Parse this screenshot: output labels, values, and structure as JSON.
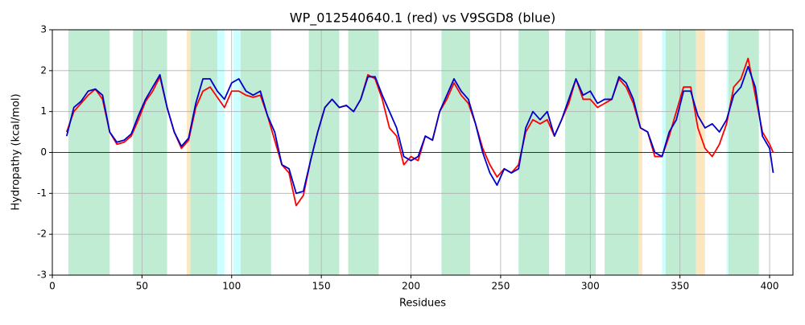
{
  "chart_data": {
    "type": "line",
    "title": "WP_012540640.1 (red) vs V9SGD8 (blue)",
    "xlabel": "Residues",
    "ylabel": "Hydropathy (kcal/mol)",
    "xlim": [
      0,
      413
    ],
    "ylim": [
      -3,
      3
    ],
    "xticks": [
      0,
      50,
      100,
      150,
      200,
      250,
      300,
      350,
      400
    ],
    "yticks": [
      -3,
      -2,
      -1,
      0,
      1,
      2,
      3
    ],
    "grid": true,
    "hline": 0,
    "spans": [
      {
        "start": 9,
        "end": 32,
        "color": "#c0ecd4"
      },
      {
        "start": 45,
        "end": 64,
        "color": "#c0ecd4"
      },
      {
        "start": 75,
        "end": 77,
        "color": "#fde7c0"
      },
      {
        "start": 77,
        "end": 92,
        "color": "#c0ecd4"
      },
      {
        "start": 92,
        "end": 96,
        "color": "#ccffff"
      },
      {
        "start": 101,
        "end": 105,
        "color": "#ccffff"
      },
      {
        "start": 105,
        "end": 122,
        "color": "#c0ecd4"
      },
      {
        "start": 143,
        "end": 160,
        "color": "#c0ecd4"
      },
      {
        "start": 165,
        "end": 182,
        "color": "#c0ecd4"
      },
      {
        "start": 217,
        "end": 233,
        "color": "#c0ecd4"
      },
      {
        "start": 260,
        "end": 277,
        "color": "#c0ecd4"
      },
      {
        "start": 286,
        "end": 303,
        "color": "#c0ecd4"
      },
      {
        "start": 308,
        "end": 327,
        "color": "#c0ecd4"
      },
      {
        "start": 327,
        "end": 329,
        "color": "#fde7c0"
      },
      {
        "start": 340,
        "end": 342,
        "color": "#ccffff"
      },
      {
        "start": 342,
        "end": 359,
        "color": "#c0ecd4"
      },
      {
        "start": 359,
        "end": 364,
        "color": "#fde7c0"
      },
      {
        "start": 376,
        "end": 377,
        "color": "#ccffff"
      },
      {
        "start": 377,
        "end": 394,
        "color": "#c0ecd4"
      }
    ],
    "x": [
      8,
      12,
      16,
      20,
      24,
      28,
      32,
      36,
      40,
      44,
      48,
      52,
      56,
      60,
      64,
      68,
      72,
      76,
      80,
      84,
      88,
      92,
      96,
      100,
      104,
      108,
      112,
      116,
      120,
      124,
      128,
      132,
      136,
      140,
      144,
      148,
      152,
      156,
      160,
      164,
      168,
      172,
      176,
      180,
      184,
      188,
      192,
      196,
      200,
      204,
      208,
      212,
      216,
      220,
      224,
      228,
      232,
      236,
      240,
      244,
      248,
      252,
      256,
      260,
      264,
      268,
      272,
      276,
      280,
      284,
      288,
      292,
      296,
      300,
      304,
      308,
      312,
      316,
      320,
      324,
      328,
      332,
      336,
      340,
      344,
      348,
      352,
      356,
      360,
      364,
      368,
      372,
      376,
      380,
      384,
      388,
      392,
      396,
      400,
      402
    ],
    "series": [
      {
        "name": "WP_012540640.1",
        "color": "#ff0000",
        "values": [
          0.5,
          1.0,
          1.2,
          1.4,
          1.55,
          1.3,
          0.5,
          0.2,
          0.25,
          0.4,
          0.8,
          1.25,
          1.5,
          1.85,
          1.1,
          0.5,
          0.1,
          0.3,
          1.1,
          1.5,
          1.6,
          1.35,
          1.1,
          1.5,
          1.5,
          1.4,
          1.35,
          1.4,
          0.9,
          0.3,
          -0.3,
          -0.5,
          -1.3,
          -1.05,
          -0.2,
          0.5,
          1.1,
          1.3,
          1.1,
          1.15,
          1.0,
          1.3,
          1.9,
          1.8,
          1.3,
          0.6,
          0.4,
          -0.3,
          -0.1,
          -0.2,
          0.4,
          0.3,
          1.0,
          1.3,
          1.7,
          1.4,
          1.2,
          0.7,
          0.1,
          -0.3,
          -0.6,
          -0.4,
          -0.5,
          -0.3,
          0.5,
          0.8,
          0.7,
          0.8,
          0.4,
          0.8,
          1.2,
          1.8,
          1.3,
          1.3,
          1.1,
          1.2,
          1.3,
          1.8,
          1.6,
          1.2,
          0.6,
          0.5,
          -0.1,
          -0.1,
          0.4,
          1.0,
          1.6,
          1.6,
          0.6,
          0.1,
          -0.1,
          0.2,
          0.7,
          1.6,
          1.8,
          2.3,
          1.4,
          0.5,
          0.2,
          0.0
        ]
      },
      {
        "name": "V9SGD8",
        "color": "#0000cd",
        "values": [
          0.4,
          1.1,
          1.25,
          1.5,
          1.55,
          1.4,
          0.5,
          0.25,
          0.3,
          0.45,
          0.9,
          1.3,
          1.6,
          1.9,
          1.1,
          0.5,
          0.15,
          0.35,
          1.2,
          1.8,
          1.8,
          1.5,
          1.3,
          1.7,
          1.8,
          1.5,
          1.4,
          1.5,
          0.9,
          0.5,
          -0.3,
          -0.4,
          -1.0,
          -0.95,
          -0.2,
          0.5,
          1.1,
          1.3,
          1.1,
          1.15,
          1.0,
          1.3,
          1.85,
          1.85,
          1.4,
          1.0,
          0.6,
          -0.1,
          -0.2,
          -0.1,
          0.4,
          0.3,
          1.0,
          1.4,
          1.8,
          1.5,
          1.3,
          0.7,
          0.0,
          -0.5,
          -0.8,
          -0.4,
          -0.5,
          -0.4,
          0.6,
          1.0,
          0.8,
          1.0,
          0.4,
          0.8,
          1.3,
          1.8,
          1.4,
          1.5,
          1.2,
          1.3,
          1.3,
          1.85,
          1.7,
          1.3,
          0.6,
          0.5,
          0.0,
          -0.1,
          0.5,
          0.8,
          1.5,
          1.5,
          0.9,
          0.6,
          0.7,
          0.5,
          0.8,
          1.4,
          1.6,
          2.1,
          1.6,
          0.4,
          0.1,
          -0.5
        ]
      }
    ]
  }
}
